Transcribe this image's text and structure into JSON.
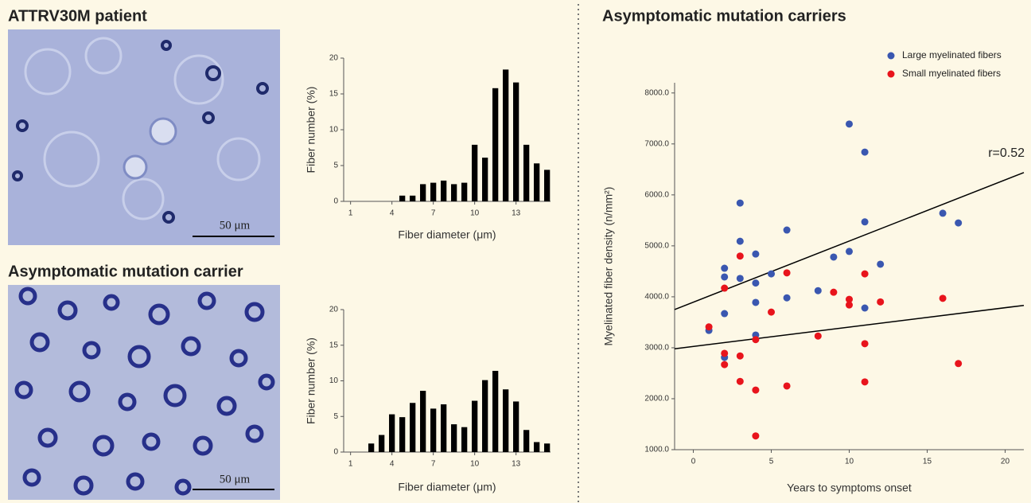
{
  "images": [
    {
      "title": "ATTRV30M patient",
      "scale_bar": "50 μm"
    },
    {
      "title": "Asymptomatic mutation carrier",
      "scale_bar": "50 μm"
    }
  ],
  "chart_data": [
    {
      "type": "bar",
      "x_label": "Fiber diameter (μm)",
      "y_label": "Fiber number (%)",
      "color": "#000000",
      "x": [
        4.75,
        5.5,
        6.25,
        7,
        7.75,
        8.5,
        9.25,
        10,
        10.75,
        11.5,
        12.25,
        13,
        13.75,
        14.5,
        15.25
      ],
      "values": [
        0.8,
        0.8,
        2.4,
        2.6,
        2.9,
        2.4,
        2.6,
        7.9,
        6.1,
        15.8,
        18.4,
        16.6,
        7.9,
        5.3,
        4.4
      ],
      "xlim": [
        0.5,
        15.5
      ],
      "xticks": [
        1,
        4,
        7,
        10,
        13
      ],
      "ylim": [
        0,
        20
      ],
      "yticks": [
        0,
        5,
        10,
        15,
        20
      ]
    },
    {
      "type": "bar",
      "x_label": "Fiber diameter (μm)",
      "y_label": "Fiber number (%)",
      "color": "#000000",
      "x": [
        2.5,
        3.25,
        4,
        4.75,
        5.5,
        6.25,
        7,
        7.75,
        8.5,
        9.25,
        10,
        10.75,
        11.5,
        12.25,
        13,
        13.75,
        14.5,
        15.25
      ],
      "values": [
        1.2,
        2.4,
        5.3,
        4.9,
        6.9,
        8.6,
        6.1,
        6.7,
        3.9,
        3.5,
        7.2,
        10.1,
        11.4,
        8.8,
        7.1,
        3.1,
        1.4,
        1.2
      ],
      "xlim": [
        0.5,
        15.5
      ],
      "xticks": [
        1,
        4,
        7,
        10,
        13
      ],
      "ylim": [
        0,
        20
      ],
      "yticks": [
        0,
        5,
        10,
        15,
        20
      ]
    },
    {
      "type": "scatter",
      "title": "Asymptomatic mutation carriers",
      "x_label": "Years to symptoms onset",
      "y_label": "Myelinated fiber density (n/mm²)",
      "legend": "upper right",
      "annotation": "r=0.52",
      "series": [
        {
          "name": "Large myelinated fibers",
          "color": "#3a57b0",
          "x": [
            1,
            2,
            2,
            2,
            2,
            3,
            3,
            3,
            4,
            4,
            4,
            4,
            5,
            6,
            6,
            8,
            9,
            10,
            10,
            11,
            11,
            11,
            12,
            16,
            17
          ],
          "values": [
            3340,
            4560,
            4390,
            3670,
            2810,
            5840,
            5090,
            4360,
            4840,
            4270,
            3890,
            3250,
            4450,
            5310,
            3980,
            4120,
            4780,
            4890,
            7390,
            6840,
            5470,
            3780,
            4640,
            5640,
            5450
          ]
        },
        {
          "name": "Small myelinated fibers",
          "color": "#e8141c",
          "x": [
            1,
            2,
            2,
            2,
            3,
            3,
            3,
            4,
            4,
            4,
            5,
            6,
            6,
            8,
            9,
            10,
            10,
            11,
            11,
            11,
            12,
            16,
            17
          ],
          "values": [
            3410,
            4170,
            2890,
            2670,
            4800,
            2840,
            2340,
            3160,
            2170,
            1270,
            3700,
            4470,
            2250,
            3230,
            4090,
            3950,
            3840,
            4450,
            3080,
            2330,
            3900,
            3970,
            2690
          ]
        }
      ],
      "trend_lines": [
        {
          "intercept": 3894,
          "slope": 120
        },
        {
          "intercept": 3026,
          "slope": 38
        }
      ],
      "xlim": [
        -1.2,
        21.2
      ],
      "xticks": [
        0,
        5,
        10,
        15,
        20
      ],
      "ylim": [
        1000,
        8200
      ],
      "yticks": [
        {
          "value": 1000,
          "label": "1000.0"
        },
        {
          "value": 2000,
          "label": "2000.0"
        },
        {
          "value": 3000,
          "label": "3000.0"
        },
        {
          "value": 4000,
          "label": "4000.0"
        },
        {
          "value": 5000,
          "label": "5000.0"
        },
        {
          "value": 6000,
          "label": "6000.0"
        },
        {
          "value": 7000,
          "label": "7000.0"
        },
        {
          "value": 8000,
          "label": "8000.0"
        }
      ]
    }
  ]
}
